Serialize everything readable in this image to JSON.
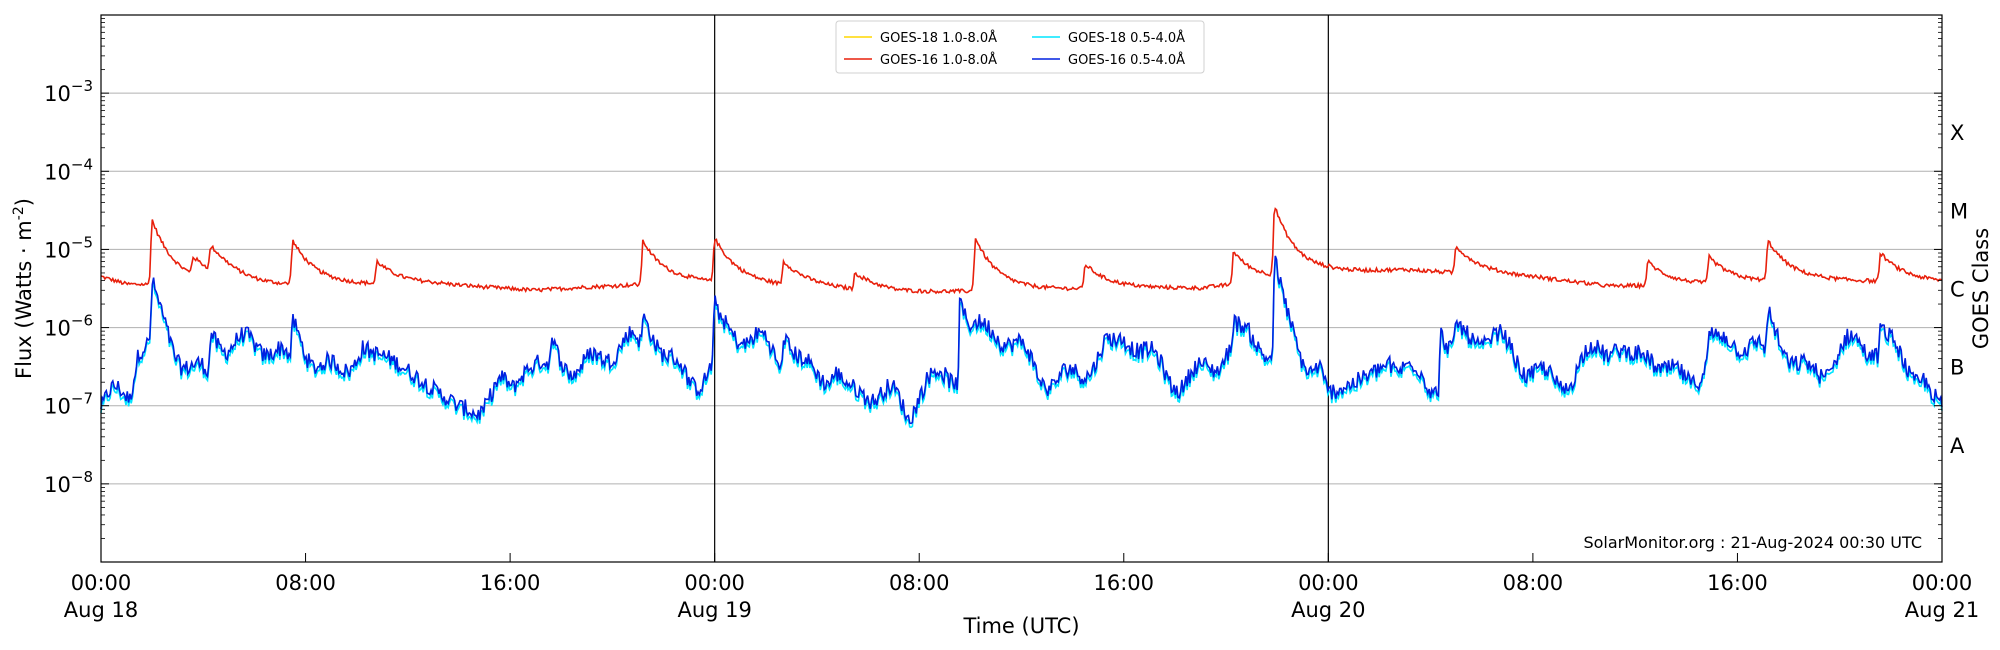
{
  "chart_data": {
    "type": "line",
    "title": "",
    "xlabel": "Time (UTC)",
    "ylabel": "Flux (Watts · m",
    "ylabel_sup": "-2",
    "ylabel_suffix": ")",
    "y2label": "GOES Class",
    "annotation": "SolarMonitor.org : 21-Aug-2024 00:30 UTC",
    "yscale": "log",
    "ylim": [
      1e-09,
      0.01
    ],
    "xlim_hours": [
      0,
      72
    ],
    "grid": "horizontal",
    "legend_position": "top-center",
    "x_ticks": [
      {
        "hour": 0,
        "time": "00:00",
        "date": "Aug 18"
      },
      {
        "hour": 8,
        "time": "08:00",
        "date": ""
      },
      {
        "hour": 16,
        "time": "16:00",
        "date": ""
      },
      {
        "hour": 24,
        "time": "00:00",
        "date": "Aug 19"
      },
      {
        "hour": 32,
        "time": "08:00",
        "date": ""
      },
      {
        "hour": 40,
        "time": "16:00",
        "date": ""
      },
      {
        "hour": 48,
        "time": "00:00",
        "date": "Aug 20"
      },
      {
        "hour": 56,
        "time": "08:00",
        "date": ""
      },
      {
        "hour": 64,
        "time": "16:00",
        "date": ""
      },
      {
        "hour": 72,
        "time": "00:00",
        "date": "Aug 21"
      }
    ],
    "day_boundaries_hours": [
      24,
      48
    ],
    "y_ticks": [
      {
        "exp": -8,
        "base": "10",
        "sup": "−8"
      },
      {
        "exp": -7,
        "base": "10",
        "sup": "−7"
      },
      {
        "exp": -6,
        "base": "10",
        "sup": "−6"
      },
      {
        "exp": -5,
        "base": "10",
        "sup": "−5"
      },
      {
        "exp": -4,
        "base": "10",
        "sup": "−4"
      },
      {
        "exp": -3,
        "base": "10",
        "sup": "−3"
      }
    ],
    "goes_classes": [
      {
        "label": "A",
        "exp": -7.5
      },
      {
        "label": "B",
        "exp": -6.5
      },
      {
        "label": "C",
        "exp": -5.5
      },
      {
        "label": "M",
        "exp": -4.5
      },
      {
        "label": "X",
        "exp": -3.5
      }
    ],
    "series": [
      {
        "name": "GOES-18 1.0-8.0Å",
        "color": "#ffd700",
        "band": "long",
        "visible_points": []
      },
      {
        "name": "GOES-18 0.5-4.0Å",
        "color": "#00e5ff",
        "band": "short",
        "offset": -0.05
      },
      {
        "name": "GOES-16 1.0-8.0Å",
        "color": "#e8200c",
        "band": "long"
      },
      {
        "name": "GOES-16 0.5-4.0Å",
        "color": "#0020e0",
        "band": "short"
      }
    ],
    "long_band_peaks": [
      {
        "hour": 2.0,
        "value": 2.4e-05
      },
      {
        "hour": 3.6,
        "value": 8e-06
      },
      {
        "hour": 4.3,
        "value": 1.1e-05
      },
      {
        "hour": 7.5,
        "value": 1.3e-05
      },
      {
        "hour": 10.8,
        "value": 7e-06
      },
      {
        "hour": 21.2,
        "value": 1.3e-05
      },
      {
        "hour": 24.0,
        "value": 1.4e-05
      },
      {
        "hour": 26.7,
        "value": 7e-06
      },
      {
        "hour": 29.5,
        "value": 5e-06
      },
      {
        "hour": 34.2,
        "value": 1.4e-05
      },
      {
        "hour": 38.5,
        "value": 6.5e-06
      },
      {
        "hour": 44.3,
        "value": 9.5e-06
      },
      {
        "hour": 45.9,
        "value": 3.6e-05
      },
      {
        "hour": 53.0,
        "value": 1.1e-05
      },
      {
        "hour": 60.5,
        "value": 7e-06
      },
      {
        "hour": 62.9,
        "value": 8e-06
      },
      {
        "hour": 65.2,
        "value": 1.3e-05
      },
      {
        "hour": 69.6,
        "value": 9e-06
      }
    ],
    "long_band_samples": [
      {
        "hour": 0,
        "value": 4.5e-06
      },
      {
        "hour": 1,
        "value": 3.6e-06
      },
      {
        "hour": 6,
        "value": 3.4e-06
      },
      {
        "hour": 9,
        "value": 3.5e-06
      },
      {
        "hour": 13,
        "value": 3.6e-06
      },
      {
        "hour": 17,
        "value": 3e-06
      },
      {
        "hour": 19,
        "value": 3.3e-06
      },
      {
        "hour": 23,
        "value": 3.8e-06
      },
      {
        "hour": 28,
        "value": 3.2e-06
      },
      {
        "hour": 31,
        "value": 2.8e-06
      },
      {
        "hour": 36,
        "value": 3e-06
      },
      {
        "hour": 40,
        "value": 3.2e-06
      },
      {
        "hour": 43,
        "value": 3.2e-06
      },
      {
        "hour": 48,
        "value": 5e-06
      },
      {
        "hour": 51,
        "value": 5.5e-06
      },
      {
        "hour": 56,
        "value": 4.4e-06
      },
      {
        "hour": 59,
        "value": 3.4e-06
      },
      {
        "hour": 62,
        "value": 3.5e-06
      },
      {
        "hour": 67,
        "value": 4e-06
      },
      {
        "hour": 72,
        "value": 3.8e-06
      }
    ],
    "short_band_samples": [
      {
        "hour": 0,
        "value": 1e-07
      },
      {
        "hour": 1,
        "value": 7e-08
      },
      {
        "hour": 2.0,
        "value": 4e-06
      },
      {
        "hour": 4.3,
        "value": 9e-07
      },
      {
        "hour": 7.5,
        "value": 1.3e-06
      },
      {
        "hour": 10.8,
        "value": 4.5e-07
      },
      {
        "hour": 15,
        "value": 6e-08
      },
      {
        "hour": 17.6,
        "value": 7e-07
      },
      {
        "hour": 21.2,
        "value": 1.4e-06
      },
      {
        "hour": 24.0,
        "value": 2.1e-06
      },
      {
        "hour": 26.7,
        "value": 8e-07
      },
      {
        "hour": 31.5,
        "value": 5e-08
      },
      {
        "hour": 33.6,
        "value": 2.3e-06
      },
      {
        "hour": 34.2,
        "value": 1.2e-06
      },
      {
        "hour": 39.9,
        "value": 7e-07
      },
      {
        "hour": 44.3,
        "value": 1.2e-06
      },
      {
        "hour": 45.9,
        "value": 8e-06
      },
      {
        "hour": 48,
        "value": 1.2e-07
      },
      {
        "hour": 52.4,
        "value": 8.5e-07
      },
      {
        "hour": 53.0,
        "value": 1.2e-06
      },
      {
        "hour": 60.4,
        "value": 4.5e-07
      },
      {
        "hour": 62.9,
        "value": 9e-07
      },
      {
        "hour": 65.2,
        "value": 1.7e-06
      },
      {
        "hour": 69.6,
        "value": 1e-06
      },
      {
        "hour": 72,
        "value": 9e-08
      }
    ]
  }
}
